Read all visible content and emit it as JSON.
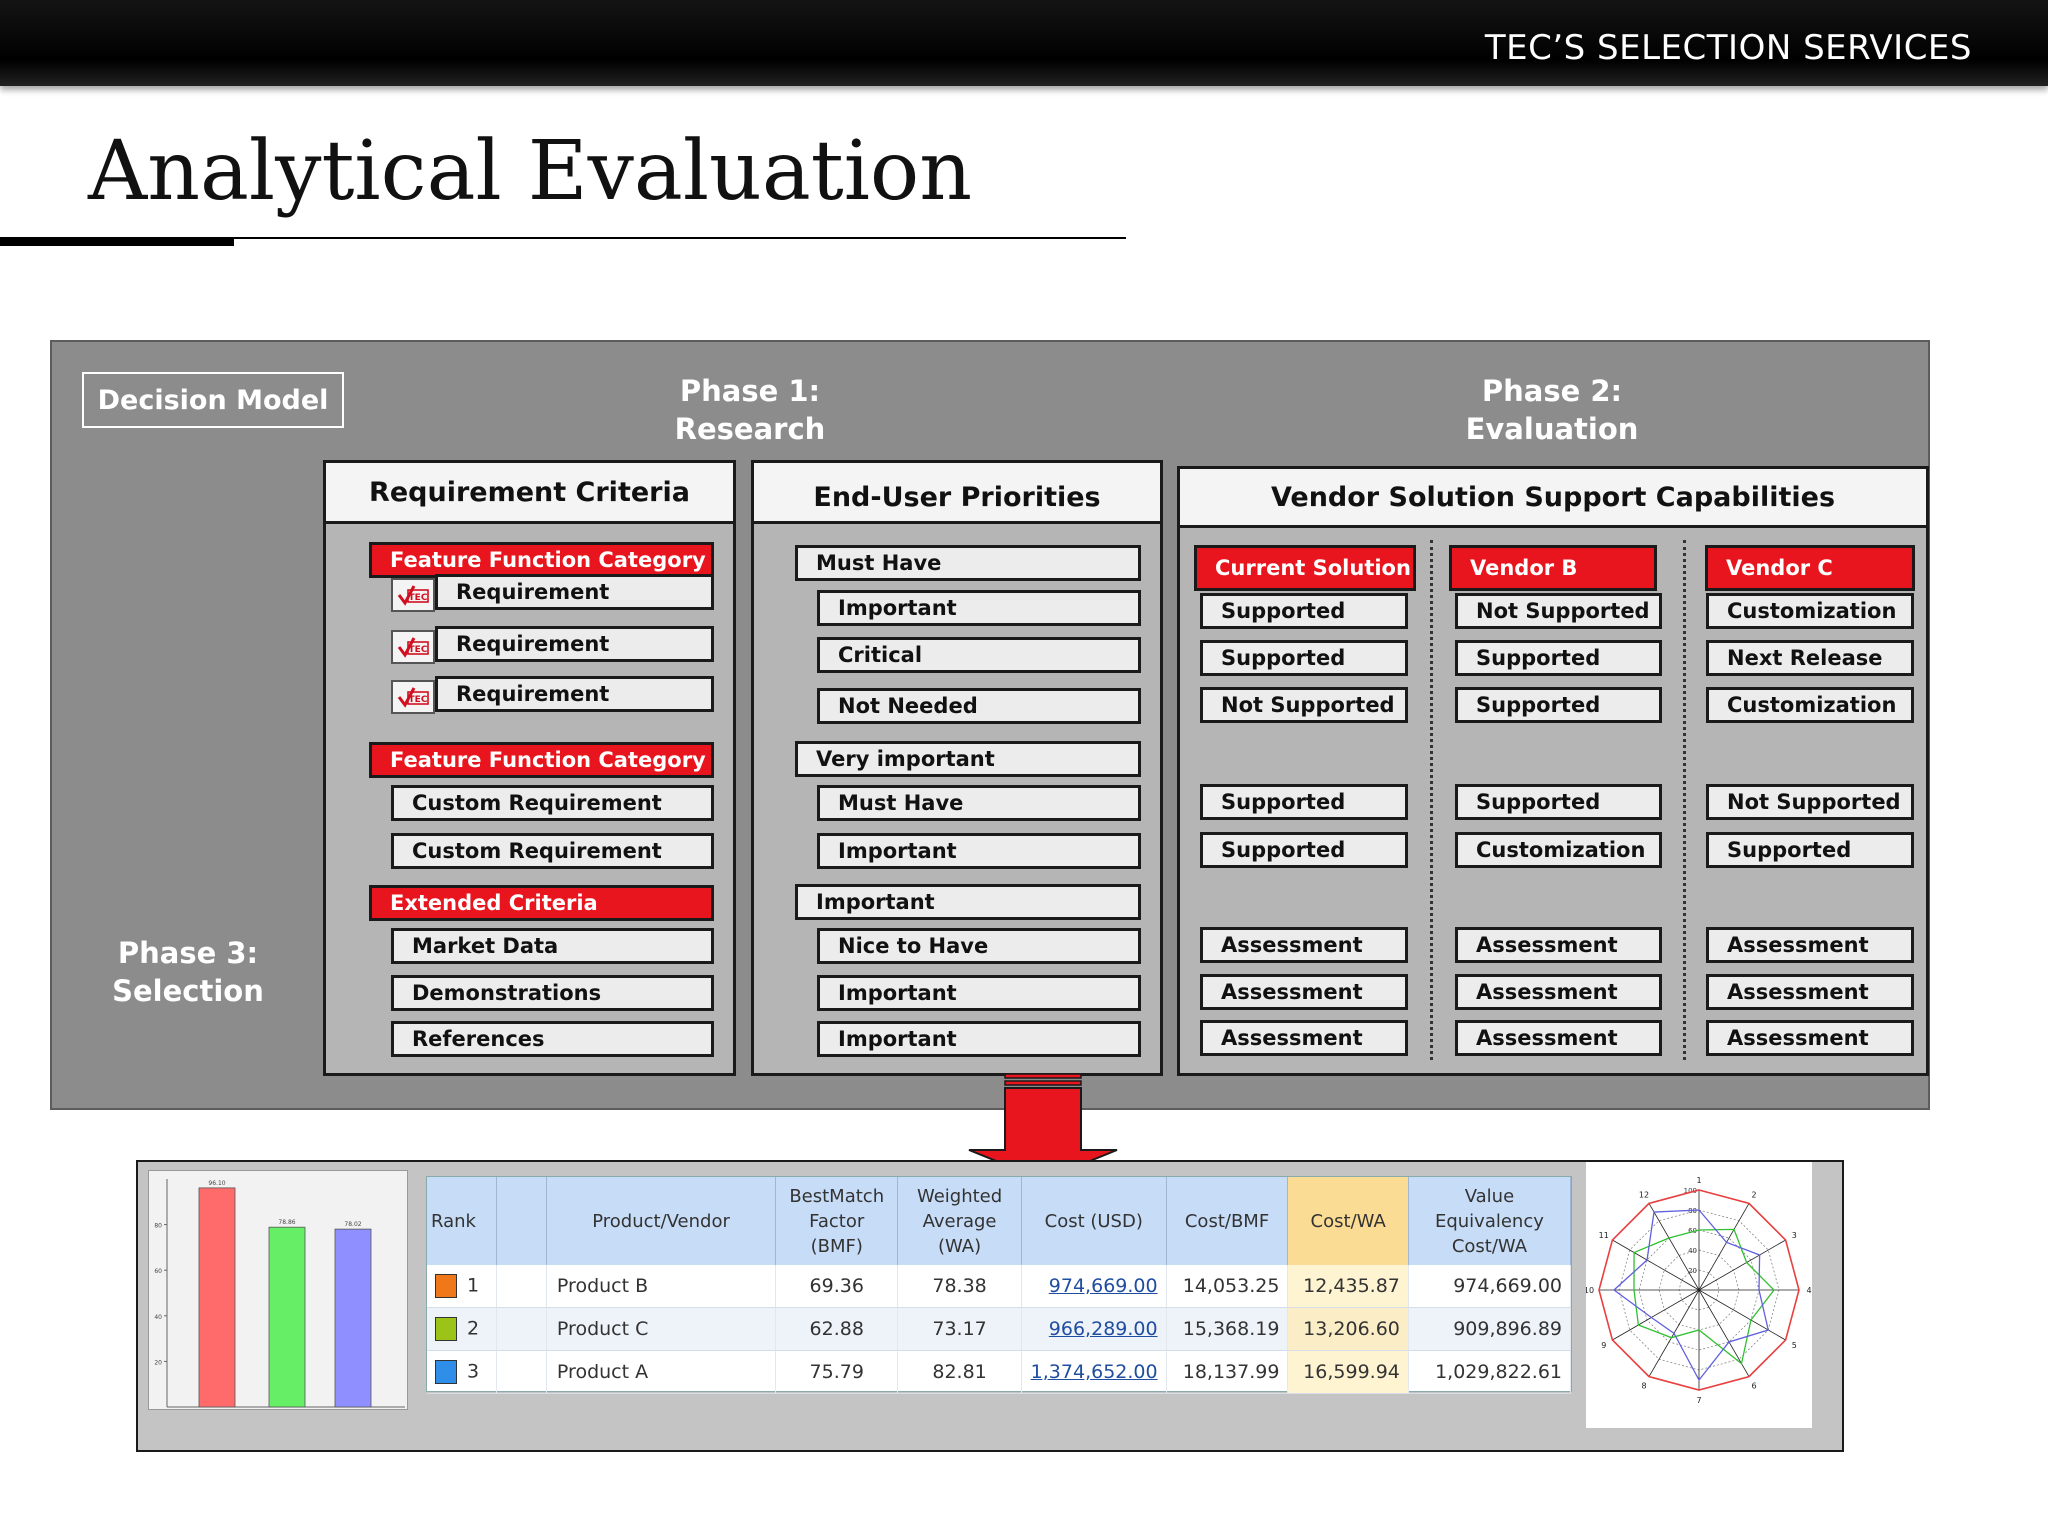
{
  "header": {
    "brand": "TEC’S SELECTION SERVICES"
  },
  "page": {
    "title": "Analytical Evaluation"
  },
  "model": {
    "decision_model": "Decision Model",
    "phase1": [
      "Phase 1:",
      "Research"
    ],
    "phase2": [
      "Phase 2:",
      "Evaluation"
    ],
    "phase3": [
      "Phase 3:",
      "Selection"
    ],
    "requirement_criteria": {
      "title": "Requirement Criteria",
      "icon": "tec-check-icon",
      "items": [
        {
          "label": "Feature Function Category",
          "kind": "category"
        },
        {
          "label": "Requirement",
          "kind": "icon"
        },
        {
          "label": "Requirement",
          "kind": "icon"
        },
        {
          "label": "Requirement",
          "kind": "icon"
        },
        {
          "label": "Feature Function Category",
          "kind": "category"
        },
        {
          "label": "Custom Requirement",
          "kind": "plain"
        },
        {
          "label": "Custom Requirement",
          "kind": "plain"
        },
        {
          "label": "Extended Criteria",
          "kind": "category"
        },
        {
          "label": "Market Data",
          "kind": "plain"
        },
        {
          "label": "Demonstrations",
          "kind": "plain"
        },
        {
          "label": "References",
          "kind": "plain"
        }
      ]
    },
    "end_user_priorities": {
      "title": "End-User Priorities",
      "items": [
        {
          "label": "Must Have",
          "kind": "outer"
        },
        {
          "label": "Important",
          "kind": "inner"
        },
        {
          "label": "Critical",
          "kind": "inner"
        },
        {
          "label": "Not Needed",
          "kind": "inner"
        },
        {
          "label": "Very important",
          "kind": "outer"
        },
        {
          "label": "Must Have",
          "kind": "inner"
        },
        {
          "label": "Important",
          "kind": "inner"
        },
        {
          "label": "Important",
          "kind": "outer"
        },
        {
          "label": "Nice to Have",
          "kind": "inner"
        },
        {
          "label": "Important",
          "kind": "inner"
        },
        {
          "label": "Important",
          "kind": "inner"
        }
      ]
    },
    "vendor_support": {
      "title": "Vendor Solution Support Capabilities",
      "vendors": [
        {
          "name": "Current Solution",
          "values": [
            "Supported",
            "Supported",
            "Not Supported",
            "Supported",
            "Supported",
            "Assessment",
            "Assessment",
            "Assessment"
          ]
        },
        {
          "name": "Vendor B",
          "values": [
            "Not Supported",
            "Supported",
            "Supported",
            "Supported",
            "Customization",
            "Assessment",
            "Assessment",
            "Assessment"
          ]
        },
        {
          "name": "Vendor C",
          "values": [
            "Customization",
            "Next Release",
            "Customization",
            "Not Supported",
            "Supported",
            "Assessment",
            "Assessment",
            "Assessment"
          ]
        }
      ]
    }
  },
  "colors": {
    "red": "#e8141e",
    "panel": "#8c8c8c"
  },
  "results_table": {
    "headers": [
      "Rank",
      "",
      "Product/Vendor",
      "BestMatch Factor (BMF)",
      "Weighted Average (WA)",
      "Cost (USD)",
      "Cost/BMF",
      "Cost/WA",
      "Value Equivalency Cost/WA"
    ],
    "rows": [
      {
        "rank": "1",
        "color": "#f07818",
        "product": "Product B",
        "bmf": "69.36",
        "wa": "78.38",
        "cost": "974,669.00",
        "cost_bmf": "14,053.25",
        "cost_wa": "12,435.87",
        "value_eq": "974,669.00"
      },
      {
        "rank": "2",
        "color": "#9cc418",
        "product": "Product C",
        "bmf": "62.88",
        "wa": "73.17",
        "cost": "966,289.00",
        "cost_bmf": "15,368.19",
        "cost_wa": "13,206.60",
        "value_eq": "909,896.89"
      },
      {
        "rank": "3",
        "color": "#2f8ee8",
        "product": "Product A",
        "bmf": "75.79",
        "wa": "82.81",
        "cost": "1,374,652.00",
        "cost_bmf": "18,137.99",
        "cost_wa": "16,599.94",
        "value_eq": "1,029,822.61"
      }
    ]
  },
  "chart_data": [
    {
      "type": "bar",
      "categories": [
        "",
        "",
        ""
      ],
      "values": [
        96.1,
        78.86,
        78.02
      ],
      "data_labels": [
        "96.10",
        "78.86",
        "78.02"
      ],
      "colors": [
        "#ff6b6b",
        "#66ee66",
        "#8f8fff"
      ],
      "ylim": [
        0,
        100
      ],
      "yticks": [
        "20",
        "40",
        "60",
        "80"
      ],
      "grid": false
    },
    {
      "type": "radar",
      "axes": [
        "1",
        "2",
        "3",
        "4",
        "5",
        "6",
        "7",
        "8",
        "9",
        "10",
        "11",
        "12"
      ],
      "rticks": [
        "20",
        "40",
        "60",
        "80",
        "100"
      ],
      "rlim": [
        0,
        100
      ],
      "series": [
        {
          "color": "#e84040",
          "values": [
            100,
            100,
            100,
            100,
            100,
            100,
            100,
            100,
            100,
            100,
            100,
            100
          ]
        },
        {
          "color": "#30c030",
          "values": [
            60,
            70,
            55,
            75,
            60,
            85,
            40,
            55,
            70,
            65,
            75,
            60
          ]
        },
        {
          "color": "#6060e0",
          "values": [
            80,
            55,
            70,
            60,
            80,
            60,
            90,
            50,
            55,
            85,
            60,
            90
          ]
        }
      ]
    }
  ]
}
